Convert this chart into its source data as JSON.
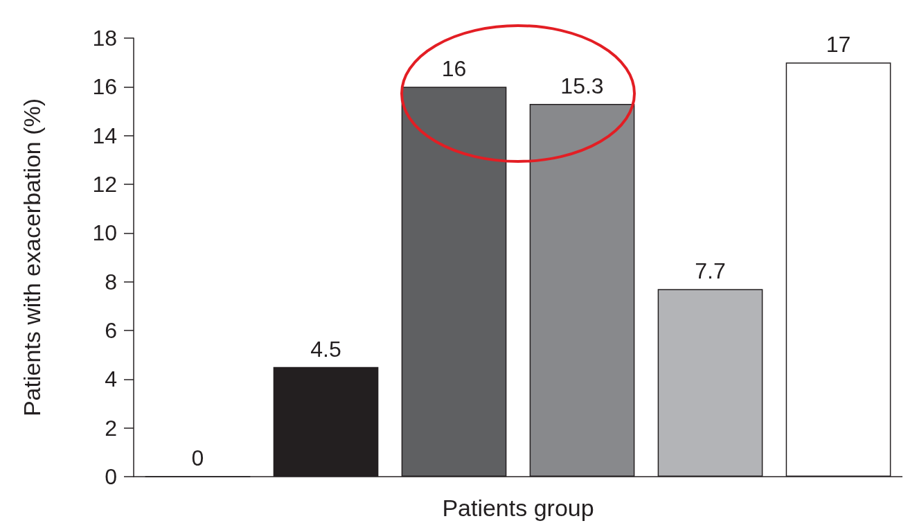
{
  "chart_data": {
    "type": "bar",
    "xlabel": "Patients group",
    "ylabel": "Patients with exacerbation (%)",
    "categories": [
      null,
      null,
      null,
      null,
      null,
      null
    ],
    "values": [
      0,
      4.5,
      16,
      15.3,
      7.7,
      17
    ],
    "colors": [
      "#231f20",
      "#231f20",
      "#5f6062",
      "#88898c",
      "#b3b4b7",
      "#ffffff"
    ],
    "ylim": [
      0,
      18
    ],
    "yticks": [
      0,
      2,
      4,
      6,
      8,
      10,
      12,
      14,
      16,
      18
    ],
    "data_labels": true
  }
}
